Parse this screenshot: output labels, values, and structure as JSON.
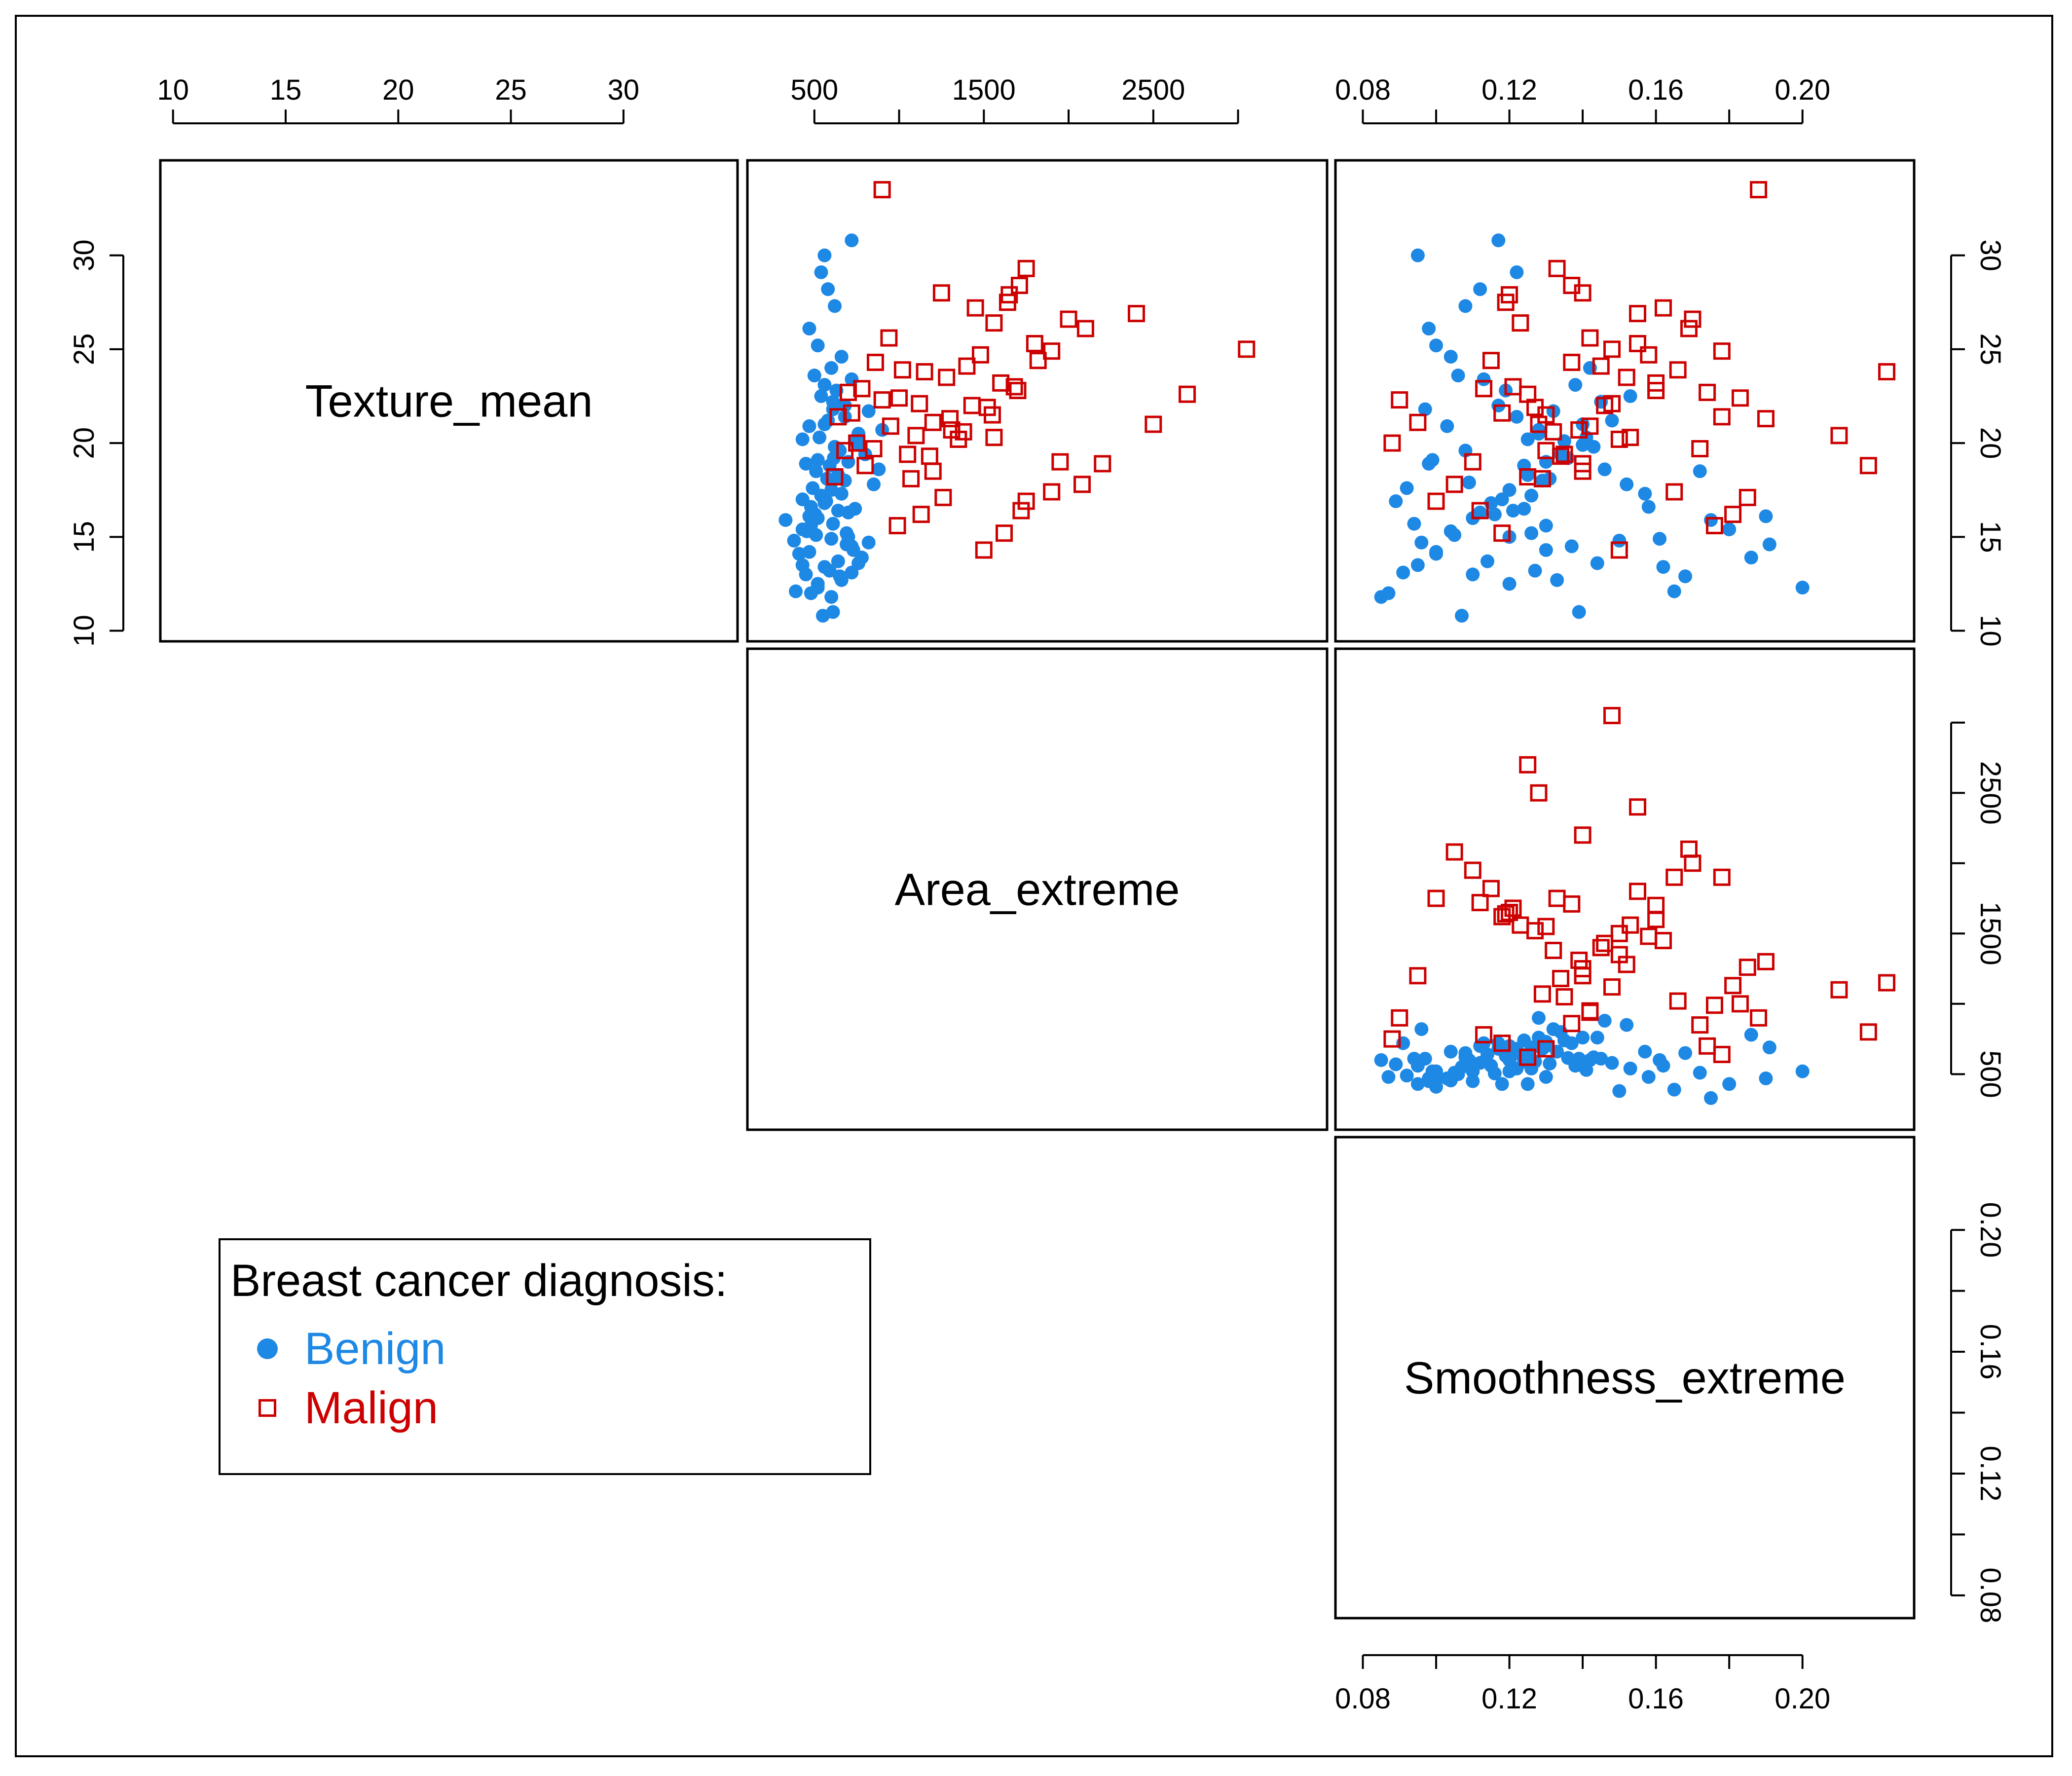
{
  "colors": {
    "benign": "#1e88e5",
    "malign": "#cc0000",
    "frame": "#000000"
  },
  "legend": {
    "title": "Breast cancer diagnosis:",
    "placement": "bottom-left",
    "items": [
      {
        "label": "Benign",
        "marker": "filled-circle-icon",
        "color": "#1e88e5"
      },
      {
        "label": "Malign",
        "marker": "open-square-icon",
        "color": "#cc0000"
      }
    ]
  },
  "chart_data": {
    "type": "scatter",
    "layout": "scatterplot-matrix-upper-triangle",
    "variables": [
      {
        "name": "Texture_mean",
        "range": [
          10,
          34.5
        ],
        "ticks": [
          10,
          15,
          20,
          25,
          30
        ]
      },
      {
        "name": "Area_extreme",
        "range": [
          180,
          3450
        ],
        "ticks": [
          500,
          1000,
          1500,
          2000,
          2500,
          3000
        ]
      },
      {
        "name": "Smoothness_extreme",
        "range": [
          0.076,
          0.227
        ],
        "ticks": [
          0.08,
          0.1,
          0.12,
          0.14,
          0.16,
          0.18,
          0.2
        ]
      }
    ],
    "tick_labels": {
      "Texture_mean": [
        "10",
        "15",
        "20",
        "25",
        "30"
      ],
      "Area_extreme": [
        "500",
        "",
        "1500",
        "",
        "2500",
        ""
      ],
      "Smoothness_extreme": [
        "0.08",
        "",
        "0.12",
        "",
        "0.16",
        "",
        "0.20"
      ]
    },
    "series": [
      {
        "name": "Benign",
        "marker": "filled-circle",
        "points": [
          [
            13.5,
            430,
            0.095
          ],
          [
            14.2,
            470,
            0.1
          ],
          [
            15.1,
            510,
            0.105
          ],
          [
            16.0,
            520,
            0.11
          ],
          [
            16.8,
            560,
            0.115
          ],
          [
            17.5,
            600,
            0.12
          ],
          [
            18.3,
            640,
            0.125
          ],
          [
            19.0,
            700,
            0.13
          ],
          [
            20.1,
            740,
            0.135
          ],
          [
            21.0,
            560,
            0.14
          ],
          [
            22.2,
            610,
            0.145
          ],
          [
            14.8,
            380,
            0.15
          ],
          [
            13.0,
            450,
            0.11
          ],
          [
            12.5,
            520,
            0.12
          ],
          [
            15.6,
            480,
            0.13
          ],
          [
            17.0,
            430,
            0.118
          ],
          [
            18.8,
            590,
            0.124
          ],
          [
            19.6,
            650,
            0.108
          ],
          [
            16.3,
            700,
            0.112
          ],
          [
            20.5,
            760,
            0.128
          ],
          [
            21.7,
            820,
            0.132
          ],
          [
            23.1,
            560,
            0.138
          ],
          [
            24.0,
            600,
            0.142
          ],
          [
            25.2,
            520,
            0.1
          ],
          [
            26.1,
            470,
            0.098
          ],
          [
            27.3,
            620,
            0.108
          ],
          [
            28.2,
            580,
            0.112
          ],
          [
            29.1,
            540,
            0.122
          ],
          [
            30.0,
            560,
            0.095
          ],
          [
            30.8,
            720,
            0.117
          ],
          [
            10.8,
            550,
            0.107
          ],
          [
            11.0,
            610,
            0.139
          ],
          [
            12.1,
            390,
            0.165
          ],
          [
            12.9,
            650,
            0.168
          ],
          [
            13.9,
            780,
            0.186
          ],
          [
            14.6,
            690,
            0.191
          ],
          [
            15.9,
            330,
            0.175
          ],
          [
            16.6,
            480,
            0.158
          ],
          [
            17.8,
            850,
            0.152
          ],
          [
            18.6,
            880,
            0.146
          ],
          [
            19.4,
            800,
            0.134
          ],
          [
            20.7,
            900,
            0.128
          ],
          [
            21.4,
            680,
            0.122
          ],
          [
            22.8,
            630,
            0.119
          ],
          [
            23.6,
            500,
            0.106
          ],
          [
            14.1,
            410,
            0.1
          ],
          [
            15.3,
            455,
            0.104
          ],
          [
            16.2,
            505,
            0.116
          ],
          [
            17.2,
            540,
            0.126
          ],
          [
            18.1,
            575,
            0.131
          ],
          [
            19.2,
            615,
            0.136
          ],
          [
            20.3,
            530,
            0.141
          ],
          [
            13.2,
            590,
            0.127
          ],
          [
            12.7,
            660,
            0.133
          ],
          [
            14.5,
            720,
            0.137
          ],
          [
            15.7,
            610,
            0.094
          ],
          [
            16.9,
            570,
            0.089
          ],
          [
            17.6,
            490,
            0.092
          ],
          [
            18.9,
            450,
            0.098
          ],
          [
            13.7,
            640,
            0.114
          ],
          [
            15.0,
            700,
            0.12
          ],
          [
            16.5,
            740,
            0.124
          ],
          [
            18.0,
            680,
            0.129
          ],
          [
            19.8,
            620,
            0.143
          ],
          [
            21.2,
            580,
            0.148
          ],
          [
            22.5,
            540,
            0.153
          ],
          [
            17.3,
            660,
            0.157
          ],
          [
            14.9,
            600,
            0.161
          ],
          [
            13.4,
            560,
            0.162
          ],
          [
            12.3,
            520,
            0.2
          ],
          [
            16.1,
            470,
            0.19
          ],
          [
            15.4,
            430,
            0.18
          ],
          [
            18.5,
            510,
            0.172
          ],
          [
            20.9,
            470,
            0.103
          ],
          [
            19.1,
            520,
            0.099
          ],
          [
            17.9,
            600,
            0.109
          ],
          [
            16.4,
            640,
            0.121
          ],
          [
            15.2,
            690,
            0.126
          ],
          [
            14.3,
            730,
            0.13
          ],
          [
            13.6,
            760,
            0.144
          ],
          [
            22.0,
            680,
            0.117
          ],
          [
            23.4,
            720,
            0.113
          ],
          [
            24.6,
            660,
            0.104
          ],
          [
            21.8,
            610,
            0.097
          ],
          [
            20.2,
            430,
            0.125
          ],
          [
            12.0,
            480,
            0.087
          ],
          [
            11.8,
            600,
            0.085
          ],
          [
            13.1,
            720,
            0.091
          ],
          [
            14.7,
            820,
            0.096
          ],
          [
            19.9,
            760,
            0.14
          ]
        ]
      },
      {
        "name": "Malign",
        "marker": "open-square",
        "points": [
          [
            18.5,
            1200,
            0.14
          ],
          [
            20.2,
            1350,
            0.15
          ],
          [
            21.5,
            1550,
            0.13
          ],
          [
            22.8,
            1700,
            0.16
          ],
          [
            24.1,
            1400,
            0.145
          ],
          [
            25.3,
            1800,
            0.155
          ],
          [
            26.6,
            2000,
            0.17
          ],
          [
            27.9,
            1650,
            0.12
          ],
          [
            19.4,
            1050,
            0.135
          ],
          [
            20.9,
            950,
            0.142
          ],
          [
            22.1,
            1120,
            0.148
          ],
          [
            23.5,
            1280,
            0.152
          ],
          [
            24.7,
            1480,
            0.158
          ],
          [
            17.4,
            1900,
            0.165
          ],
          [
            18.9,
            2200,
            0.14
          ],
          [
            21.0,
            2500,
            0.128
          ],
          [
            22.6,
            2700,
            0.125
          ],
          [
            25.0,
            3050,
            0.148
          ],
          [
            26.9,
            2400,
            0.155
          ],
          [
            29.3,
            1750,
            0.133
          ],
          [
            33.5,
            900,
            0.188
          ],
          [
            14.3,
            1500,
            0.15
          ],
          [
            15.2,
            1620,
            0.118
          ],
          [
            16.4,
            1720,
            0.112
          ],
          [
            20.4,
            1100,
            0.21
          ],
          [
            18.8,
            800,
            0.218
          ],
          [
            23.8,
            1150,
            0.223
          ],
          [
            21.3,
            1300,
            0.19
          ],
          [
            22.4,
            1000,
            0.183
          ],
          [
            19.7,
            850,
            0.172
          ],
          [
            24.9,
            1900,
            0.178
          ],
          [
            26.1,
            2100,
            0.169
          ],
          [
            27.2,
            1450,
            0.162
          ],
          [
            28.0,
            1250,
            0.14
          ],
          [
            20.6,
            1380,
            0.132
          ],
          [
            21.9,
            1520,
            0.127
          ],
          [
            23.0,
            1680,
            0.121
          ],
          [
            24.4,
            1820,
            0.115
          ],
          [
            19.0,
            1950,
            0.11
          ],
          [
            17.8,
            2080,
            0.105
          ],
          [
            16.9,
            1750,
            0.1
          ],
          [
            21.1,
            1200,
            0.095
          ],
          [
            22.3,
            900,
            0.09
          ],
          [
            20.0,
            750,
            0.088
          ],
          [
            18.2,
            620,
            0.125
          ],
          [
            19.6,
            680,
            0.13
          ],
          [
            21.6,
            720,
            0.118
          ],
          [
            22.9,
            780,
            0.113
          ],
          [
            24.3,
            860,
            0.137
          ],
          [
            25.6,
            940,
            0.142
          ],
          [
            23.2,
            1600,
            0.16
          ],
          [
            22.0,
            1430,
            0.146
          ],
          [
            20.7,
            1310,
            0.139
          ],
          [
            19.3,
            1180,
            0.134
          ],
          [
            18.1,
            1070,
            0.129
          ],
          [
            26.4,
            1560,
            0.123
          ],
          [
            27.5,
            1640,
            0.119
          ],
          [
            28.4,
            1710,
            0.137
          ],
          [
            15.6,
            990,
            0.176
          ],
          [
            16.2,
            1130,
            0.181
          ],
          [
            17.1,
            1260,
            0.185
          ],
          [
            21.4,
            640,
            0.178
          ],
          [
            22.7,
            700,
            0.174
          ],
          [
            23.9,
            1020,
            0.166
          ],
          [
            20.3,
            1560,
            0.153
          ]
        ]
      }
    ]
  }
}
